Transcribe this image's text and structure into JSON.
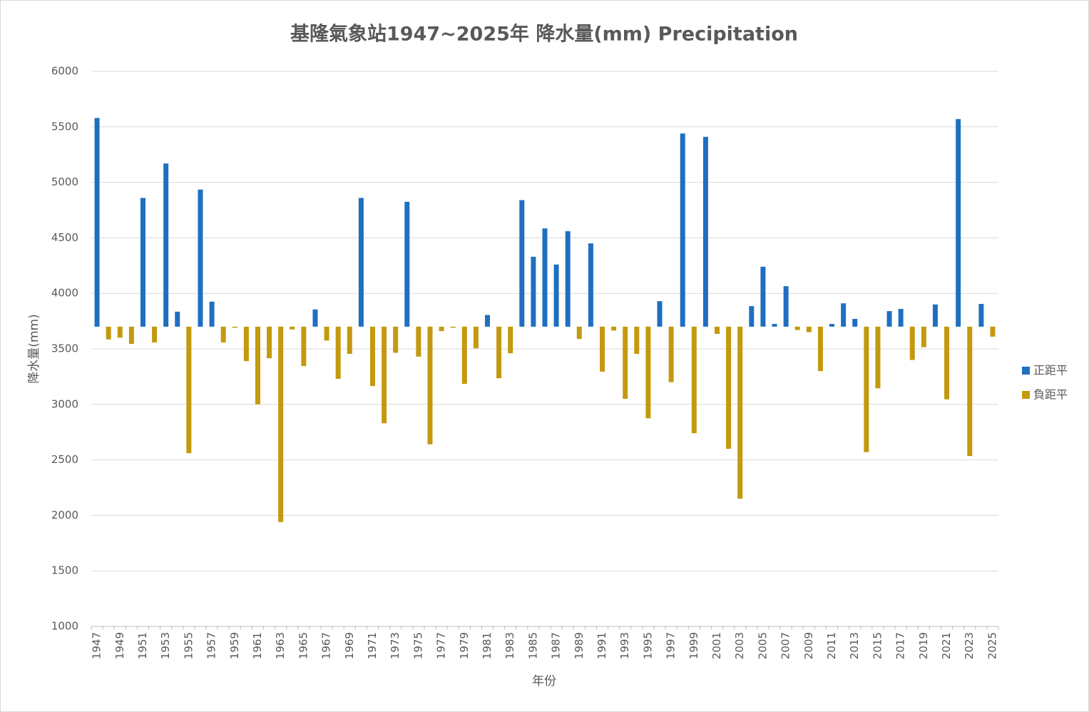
{
  "chart_data": {
    "type": "bar",
    "title": "基隆氣象站1947~2025年 降水量(mm) Precipitation",
    "x_label": "年份",
    "y_label": "降水量(mm)",
    "baseline": 3700,
    "categories": [
      "1947",
      null,
      "1949",
      null,
      "1951",
      null,
      "1953",
      null,
      "1955",
      null,
      "1957",
      null,
      "1959",
      null,
      "1961",
      null,
      "1963",
      null,
      "1965",
      null,
      "1967",
      null,
      "1969",
      null,
      "1971",
      null,
      "1973",
      null,
      "1975",
      null,
      "1977",
      null,
      "1979",
      null,
      "1981",
      null,
      "1983",
      null,
      "1985",
      null,
      "1987",
      null,
      "1989",
      null,
      "1991",
      null,
      "1993",
      null,
      "1995",
      null,
      "1997",
      null,
      "1999",
      null,
      "2001",
      null,
      "2003",
      null,
      "2005",
      null,
      "2007",
      null,
      "2009",
      null,
      "2011",
      null,
      "2013",
      null,
      "2015",
      null,
      "2017",
      null,
      "2019",
      null,
      "2021",
      null,
      "2023",
      null,
      "2025"
    ],
    "series": [
      {
        "name": "正距平",
        "color": "#1f6fc1",
        "values": [
          5580,
          null,
          null,
          null,
          4860,
          null,
          5170,
          3835,
          null,
          4935,
          3925,
          null,
          null,
          null,
          null,
          null,
          null,
          null,
          null,
          3855,
          null,
          null,
          null,
          4860,
          null,
          null,
          null,
          4825,
          null,
          null,
          null,
          null,
          null,
          null,
          3805,
          null,
          null,
          4840,
          4330,
          4585,
          4260,
          4560,
          null,
          4450,
          null,
          null,
          null,
          null,
          null,
          3930,
          null,
          5440,
          null,
          5410,
          null,
          null,
          null,
          3885,
          4240,
          3725,
          4065,
          null,
          null,
          null,
          3725,
          3910,
          3770,
          null,
          null,
          3840,
          3860,
          null,
          null,
          3900,
          null,
          5570,
          null,
          3905,
          null
        ]
      },
      {
        "name": "負距平",
        "color": "#c3990f",
        "values": [
          null,
          3585,
          3600,
          3545,
          null,
          3558,
          null,
          null,
          2560,
          null,
          null,
          3558,
          3690,
          3390,
          3000,
          3415,
          1940,
          3675,
          3345,
          null,
          3575,
          3230,
          3455,
          null,
          3165,
          2830,
          3465,
          null,
          3430,
          2640,
          3660,
          3690,
          3185,
          3505,
          null,
          3235,
          3460,
          null,
          null,
          null,
          null,
          null,
          3590,
          null,
          3295,
          3665,
          3050,
          3455,
          2875,
          null,
          3200,
          null,
          2740,
          null,
          3635,
          2600,
          2150,
          null,
          null,
          null,
          null,
          3670,
          3650,
          3300,
          null,
          null,
          null,
          2570,
          3145,
          null,
          null,
          3400,
          3515,
          null,
          3045,
          null,
          2535,
          null,
          3610
        ]
      }
    ],
    "ylim": [
      1000,
      6000
    ],
    "yticks": [
      1000,
      1500,
      2000,
      2500,
      3000,
      3500,
      4000,
      4500,
      5000,
      5500,
      6000
    ],
    "grid": true,
    "legend": "right"
  }
}
